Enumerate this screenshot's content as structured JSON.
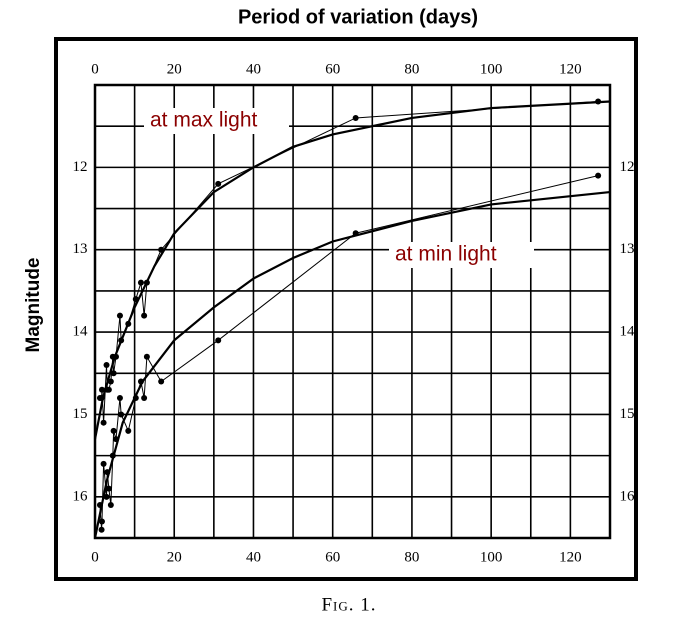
{
  "chart_data": {
    "type": "line",
    "title": "Period of variation (days)",
    "y_label": "Magnitude",
    "caption": "Fig. 1.",
    "xlim": [
      0,
      130
    ],
    "ylim": [
      16.5,
      11
    ],
    "xticks": [
      0,
      20,
      40,
      60,
      80,
      100,
      120
    ],
    "yticks": [
      12,
      13,
      14,
      15,
      16
    ],
    "x_minor_grid": [
      10,
      30,
      50,
      70,
      90,
      110,
      130
    ],
    "y_minor_grid": [
      11.5,
      12.5,
      13.5,
      14.5,
      15.5,
      16.5
    ],
    "grid": true,
    "series": [
      {
        "name": "at max light",
        "color": "#000000",
        "label_color": "#8b0000",
        "x": [
          1.25,
          1.66,
          1.76,
          2.17,
          2.91,
          3.1,
          3.5,
          4,
          4.5,
          4.7,
          5.3,
          6.3,
          6.6,
          8.4,
          10.3,
          11.6,
          12.4,
          13.1,
          16.7,
          31.1,
          65.8,
          127
        ],
        "values": [
          14.8,
          14.8,
          14.7,
          15.1,
          14.4,
          14.7,
          14.7,
          14.6,
          14.3,
          14.5,
          14.3,
          13.8,
          14.1,
          13.9,
          13.6,
          13.4,
          13.8,
          13.4,
          13.0,
          12.2,
          11.4,
          11.2
        ]
      },
      {
        "name": "at min light",
        "color": "#000000",
        "label_color": "#8b0000",
        "x": [
          1.25,
          1.66,
          1.76,
          2.17,
          2.91,
          3.1,
          3.5,
          4,
          4.5,
          4.7,
          5.3,
          6.3,
          6.6,
          8.4,
          10.3,
          11.6,
          12.4,
          13.1,
          16.7,
          31.1,
          65.8,
          127
        ],
        "values": [
          16.1,
          16.4,
          16.3,
          15.6,
          16.0,
          15.7,
          15.9,
          16.1,
          15.5,
          15.2,
          15.3,
          14.8,
          15.0,
          15.2,
          14.8,
          14.6,
          14.8,
          14.3,
          14.6,
          14.1,
          12.8,
          12.1
        ]
      }
    ],
    "curves": [
      {
        "x": [
          0,
          2,
          5,
          10,
          15,
          20,
          30,
          40,
          50,
          60,
          80,
          100,
          130
        ],
        "values": [
          15.3,
          14.8,
          14.3,
          13.7,
          13.2,
          12.8,
          12.3,
          12.0,
          11.75,
          11.6,
          11.4,
          11.28,
          11.2
        ]
      },
      {
        "x": [
          0,
          3,
          7,
          12,
          20,
          30,
          40,
          50,
          60,
          80,
          100,
          130
        ],
        "values": [
          16.5,
          15.8,
          15.1,
          14.6,
          14.1,
          13.7,
          13.35,
          13.1,
          12.9,
          12.65,
          12.45,
          12.3
        ]
      }
    ]
  }
}
